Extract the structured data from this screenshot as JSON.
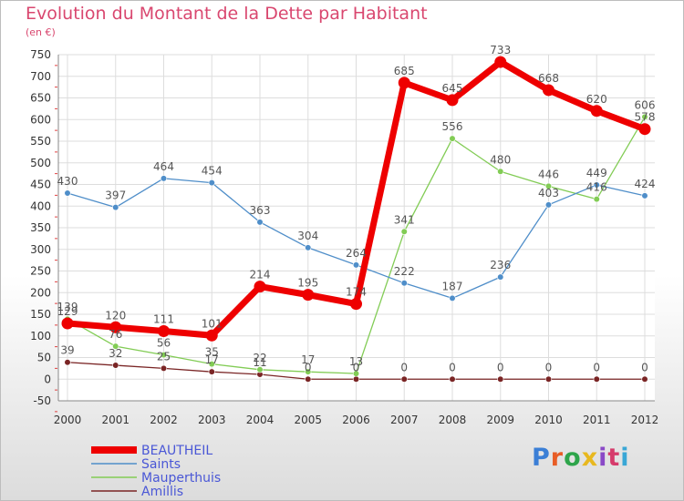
{
  "title": "Evolution du Montant de la Dette par Habitant",
  "subtitle": "(en €)",
  "logo": {
    "text": "Proxiti",
    "colors": [
      "#3b7fd6",
      "#e85d26",
      "#2ea54b",
      "#e8b81f",
      "#8a49c7",
      "#d63b6b",
      "#39a7d6"
    ]
  },
  "chart_data": {
    "type": "line",
    "x": [
      "2000",
      "2001",
      "2002",
      "2003",
      "2004",
      "2005",
      "2006",
      "2007",
      "2008",
      "2009",
      "2010",
      "2011",
      "2012"
    ],
    "ylim": [
      -50,
      750
    ],
    "yticks": [
      -50,
      0,
      50,
      100,
      150,
      200,
      250,
      300,
      350,
      400,
      450,
      500,
      550,
      600,
      650,
      700,
      750
    ],
    "grid": true,
    "legend": "bottom-left",
    "series": [
      {
        "name": "Amillis",
        "color": "#7a2525",
        "values": [
          39,
          32,
          25,
          17,
          11,
          0,
          0,
          0,
          0,
          0,
          0,
          0,
          0
        ],
        "labels": [
          "39",
          "32",
          "25",
          "17",
          "11",
          "0",
          "0",
          "0",
          "0",
          "0",
          "0",
          "0",
          "0"
        ]
      },
      {
        "name": "Mauperthuis",
        "color": "#82cc55",
        "values": [
          139,
          76,
          56,
          35,
          22,
          17,
          13,
          341,
          556,
          480,
          446,
          416,
          606
        ],
        "labels": [
          "139",
          "76",
          "56",
          "35",
          "22",
          "17",
          "13",
          "341",
          "556",
          "480",
          "446",
          "416",
          "606"
        ]
      },
      {
        "name": "Saints",
        "color": "#4f8ec9",
        "values": [
          430,
          397,
          464,
          454,
          363,
          304,
          264,
          222,
          187,
          236,
          403,
          449,
          424
        ],
        "labels": [
          "430",
          "397",
          "464",
          "454",
          "363",
          "304",
          "264",
          "222",
          "187",
          "236",
          "403",
          "449",
          "424"
        ]
      },
      {
        "name": "BEAUTHEIL",
        "color": "#ee0000",
        "values": [
          129,
          120,
          111,
          101,
          214,
          195,
          174,
          685,
          645,
          733,
          668,
          620,
          578
        ],
        "labels": [
          "129",
          "120",
          "111",
          "101",
          "214",
          "195",
          "174",
          "685",
          "645",
          "733",
          "668",
          "620",
          "578"
        ]
      }
    ],
    "legend_order": [
      "BEAUTHEIL",
      "Saints",
      "Mauperthuis",
      "Amillis"
    ]
  }
}
